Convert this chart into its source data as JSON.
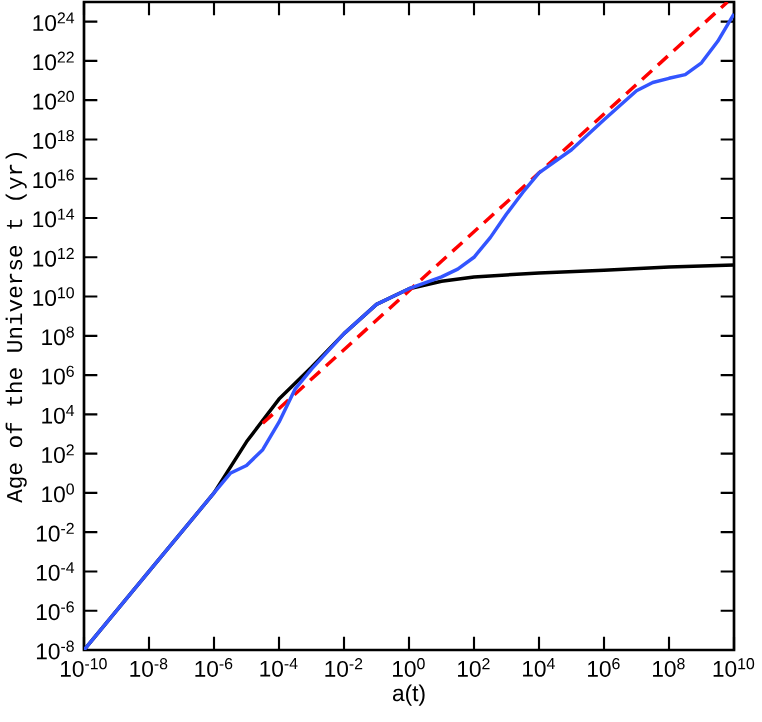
{
  "chart_data": {
    "type": "line",
    "xlabel": "a(t)",
    "ylabel": "Age of the Universe t (yr)",
    "log": "xy",
    "xlim": [
      1e-10,
      10000000000.0
    ],
    "ylim": [
      1e-08,
      1e+25
    ],
    "xticks": [
      {
        "value": 1e-10,
        "label": "10$^{-10}$"
      },
      {
        "value": 1e-08,
        "label": "10$^{-8}$"
      },
      {
        "value": 1e-06,
        "label": "10$^{-6}$"
      },
      {
        "value": 0.0001,
        "label": "10$^{-4}$"
      },
      {
        "value": 0.01,
        "label": "10$^{-2}$"
      },
      {
        "value": 1,
        "label": "10$^{0}$"
      },
      {
        "value": 100.0,
        "label": "10$^{2}$"
      },
      {
        "value": 10000.0,
        "label": "10$^{4}$"
      },
      {
        "value": 1000000.0,
        "label": "10$^{6}$"
      },
      {
        "value": 100000000.0,
        "label": "10$^{8}$"
      },
      {
        "value": 10000000000.0,
        "label": "10$^{10}$"
      }
    ],
    "yticks": [
      {
        "value": 1e-08,
        "label": "10$^{-8}$"
      },
      {
        "value": 1e-06,
        "label": "10$^{-6}$"
      },
      {
        "value": 0.0001,
        "label": "10$^{-4}$"
      },
      {
        "value": 0.01,
        "label": "10$^{-2}$"
      },
      {
        "value": 1,
        "label": "10$^{0}$"
      },
      {
        "value": 100.0,
        "label": "10$^{2}$"
      },
      {
        "value": 10000.0,
        "label": "10$^{4}$"
      },
      {
        "value": 1000000.0,
        "label": "10$^{6}$"
      },
      {
        "value": 100000000.0,
        "label": "10$^{8}$"
      },
      {
        "value": 10000000000.0,
        "label": "10$^{10}$"
      },
      {
        "value": 1000000000000.0,
        "label": "10$^{12}$"
      },
      {
        "value": 100000000000000.0,
        "label": "10$^{14}$"
      },
      {
        "value": 1e+16,
        "label": "10$^{16}$"
      },
      {
        "value": 1e+18,
        "label": "10$^{18}$"
      },
      {
        "value": 1e+20,
        "label": "10$^{20}$"
      },
      {
        "value": 1e+22,
        "label": "10$^{22}$"
      },
      {
        "value": 1e+24,
        "label": "10$^{24}$"
      }
    ],
    "series": [
      {
        "color": "#000000",
        "line_style": "solid",
        "x": [
          1e-10,
          1e-08,
          1e-06,
          1e-05,
          0.0001,
          0.001,
          0.01,
          0.1,
          1,
          10,
          100,
          10000.0,
          1000000.0,
          100000000.0,
          10000000000.0
        ],
        "values": [
          1e-08,
          0.0001,
          1,
          400.0,
          60000.0,
          2500000.0,
          130000000.0,
          4000000000.0,
          25000000000.0,
          60000000000.0,
          100000000000.0,
          160000000000.0,
          220000000000.0,
          320000000000.0,
          400000000000.0
        ]
      },
      {
        "color": "#ff0000",
        "line_style": "dashed",
        "x": [
          3.16e-05,
          6300000000.0
        ],
        "values": [
          3500.0,
          1e+25
        ]
      },
      {
        "color": "#3355ff",
        "line_style": "solid",
        "x": [
          1e-10,
          1e-08,
          1e-06,
          3.16e-06,
          1e-05,
          3.16e-05,
          0.0001,
          0.000316,
          0.001,
          0.01,
          0.1,
          1,
          10,
          31.6,
          100,
          316,
          1000.0,
          3160,
          10000.0,
          100000.0,
          1000000.0,
          10000000.0,
          31600000.0,
          100000000.0,
          316000000.0,
          1000000000.0,
          3160000000.0,
          10000000000.0
        ],
        "values": [
          1e-08,
          0.0001,
          1,
          10,
          25,
          160,
          4000.0,
          200000.0,
          2000000.0,
          130000000.0,
          4000000000.0,
          25000000000.0,
          100000000000.0,
          250000000000.0,
          1000000000000.0,
          10000000000000.0,
          160000000000000.0,
          2000000000000000.0,
          2e+16,
          3e+17,
          1e+19,
          3e+20,
          8e+20,
          1.3e+21,
          2e+21,
          8e+21,
          1e+23,
          2.5e+24
        ]
      }
    ]
  }
}
